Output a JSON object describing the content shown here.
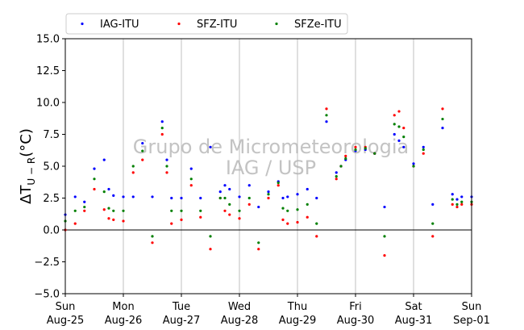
{
  "chart_data": {
    "type": "scatter",
    "title": "",
    "ylabel": "ΔT_{U−R}(°C)",
    "ylim": [
      -5.0,
      15.0
    ],
    "xlim": [
      0,
      7
    ],
    "yticks": [
      "−5.0",
      "−2.5",
      "0.0",
      "2.5",
      "5.0",
      "7.5",
      "10.0",
      "12.5",
      "15.0"
    ],
    "xticks": [
      {
        "x": 0,
        "day": "Sun",
        "date": "Aug-25"
      },
      {
        "x": 1,
        "day": "Mon",
        "date": "Aug-26"
      },
      {
        "x": 2,
        "day": "Tue",
        "date": "Aug-27"
      },
      {
        "x": 3,
        "day": "Wed",
        "date": "Aug-28"
      },
      {
        "x": 4,
        "day": "Thu",
        "date": "Aug-29"
      },
      {
        "x": 5,
        "day": "Fri",
        "date": "Aug-30"
      },
      {
        "x": 6,
        "day": "Sat",
        "date": "Aug-31"
      },
      {
        "x": 7,
        "day": "Sun",
        "date": "Sep-01"
      }
    ],
    "grid": "vertical",
    "zero_line": 0,
    "legend": "top",
    "watermark": [
      "Grupo de Micrometeorologia",
      "IAG / USP"
    ],
    "series": [
      {
        "name": "IAG-ITU",
        "color": "#0000ff",
        "x": [
          0,
          0.17,
          0.33,
          0.5,
          0.67,
          0.75,
          0.83,
          1,
          1.17,
          1.33,
          1.5,
          1.67,
          1.75,
          1.83,
          2,
          2.17,
          2.33,
          2.5,
          2.67,
          2.75,
          2.83,
          3,
          3.17,
          3.33,
          3.5,
          3.67,
          3.75,
          3.83,
          4,
          4.17,
          4.33,
          4.5,
          4.67,
          4.75,
          4.83,
          5,
          5.17,
          5.33,
          5.5,
          5.67,
          5.75,
          5.83,
          6,
          6.17,
          6.33,
          6.5,
          6.67,
          6.75,
          6.83,
          7
        ],
        "y": [
          1.2,
          2.6,
          2.2,
          4.8,
          5.5,
          3.2,
          2.7,
          2.6,
          2.6,
          6.8,
          2.6,
          8.5,
          5.5,
          2.5,
          2.5,
          4.8,
          2.5,
          6.5,
          3.0,
          3.5,
          3.2,
          2.6,
          3.5,
          1.8,
          3.0,
          3.8,
          2.5,
          2.6,
          2.8,
          3.2,
          2.5,
          8.5,
          4.5,
          5.0,
          5.5,
          6.2,
          6.3,
          6.0,
          1.8,
          7.5,
          7.0,
          6.5,
          5.2,
          6.5,
          2.0,
          8.0,
          2.8,
          2.4,
          2.6,
          2.6
        ]
      },
      {
        "name": "SFZ-ITU",
        "color": "#ff0000",
        "x": [
          0,
          0.17,
          0.33,
          0.5,
          0.67,
          0.75,
          0.83,
          1,
          1.17,
          1.33,
          1.5,
          1.67,
          1.75,
          1.83,
          2,
          2.17,
          2.33,
          2.5,
          2.67,
          2.75,
          2.83,
          3,
          3.17,
          3.33,
          3.5,
          3.67,
          3.75,
          3.83,
          4,
          4.17,
          4.33,
          4.5,
          4.67,
          4.75,
          4.83,
          5,
          5.17,
          5.33,
          5.5,
          5.67,
          5.75,
          5.83,
          6,
          6.17,
          6.33,
          6.5,
          6.67,
          6.75,
          6.83,
          7
        ],
        "y": [
          0.0,
          0.5,
          1.5,
          3.2,
          1.6,
          0.9,
          0.8,
          0.7,
          4.5,
          5.5,
          -1.0,
          7.5,
          4.5,
          0.5,
          0.8,
          3.5,
          1.0,
          -1.5,
          2.5,
          1.5,
          1.2,
          0.9,
          2.0,
          -1.5,
          2.5,
          3.5,
          0.8,
          0.5,
          0.6,
          1.0,
          -0.5,
          9.5,
          4.0,
          5.0,
          5.8,
          6.5,
          6.5,
          6.0,
          -2.0,
          9.0,
          9.3,
          8.0,
          5.0,
          6.0,
          -0.5,
          9.5,
          2.0,
          1.8,
          2.0,
          2.0
        ]
      },
      {
        "name": "SFZe-ITU",
        "color": "#008000",
        "x": [
          0,
          0.17,
          0.33,
          0.5,
          0.67,
          0.75,
          0.83,
          1,
          1.17,
          1.33,
          1.5,
          1.67,
          1.75,
          1.83,
          2,
          2.17,
          2.33,
          2.5,
          2.67,
          2.75,
          2.83,
          3,
          3.17,
          3.33,
          3.5,
          3.67,
          3.75,
          3.83,
          4,
          4.17,
          4.33,
          4.5,
          4.67,
          4.75,
          4.83,
          5,
          5.17,
          5.33,
          5.5,
          5.67,
          5.75,
          5.83,
          6,
          6.17,
          6.33,
          6.5,
          6.67,
          6.75,
          6.83,
          7
        ],
        "y": [
          0.7,
          1.5,
          1.8,
          4.0,
          3.0,
          1.7,
          1.5,
          1.5,
          5.0,
          6.2,
          -0.5,
          8.0,
          5.0,
          1.5,
          1.5,
          4.0,
          1.5,
          -0.5,
          2.5,
          2.5,
          2.0,
          1.5,
          2.5,
          -1.0,
          2.8,
          3.7,
          1.7,
          1.5,
          1.6,
          2.0,
          0.5,
          9.0,
          4.2,
          5.0,
          5.6,
          6.3,
          6.4,
          6.0,
          -0.5,
          8.3,
          8.1,
          7.3,
          5.0,
          6.3,
          0.5,
          8.7,
          2.4,
          2.0,
          2.2,
          2.2
        ]
      }
    ]
  }
}
